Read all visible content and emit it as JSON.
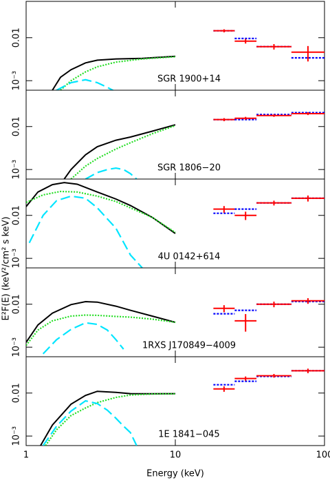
{
  "chart_data": [
    {
      "type": "spectrum",
      "annotation": "SGR 1900+14",
      "log_x": true,
      "log_y": true,
      "xlim": [
        1,
        100
      ],
      "ylim": [
        0.0006,
        0.07
      ],
      "xticks": [
        1,
        10,
        100
      ],
      "yticks": [
        {
          "value": 0.001,
          "label": "10⁻³"
        },
        0.01
      ],
      "lines": [
        {
          "color": "#000000",
          "style": "solid",
          "x": [
            1.5,
            1.7,
            2,
            2.5,
            3,
            4,
            6,
            10
          ],
          "values": [
            0.0006,
            0.0012,
            0.0018,
            0.0026,
            0.003,
            0.0032,
            0.0033,
            0.0037
          ]
        },
        {
          "color": "#22dd22",
          "style": "dotted",
          "x": [
            1.7,
            2,
            2.5,
            3,
            4,
            6,
            10
          ],
          "values": [
            0.0006,
            0.001,
            0.0016,
            0.0021,
            0.0027,
            0.0032,
            0.0036
          ]
        },
        {
          "color": "#00e5ff",
          "style": "dashed",
          "x": [
            1.6,
            2,
            2.5,
            3,
            3.5,
            4.2
          ],
          "values": [
            0.0006,
            0.0009,
            0.00105,
            0.0009,
            0.0007,
            0.0005
          ]
        }
      ],
      "bin_edges": [
        18,
        25,
        35,
        60,
        100
      ],
      "data_color": "#ff0000",
      "model_color": "#0000ff",
      "values": [
        0.0145,
        0.0083,
        0.0062,
        0.0046
      ],
      "errors": [
        0.0012,
        0.001,
        0.0009,
        0.0018
      ],
      "model": [
        0.0145,
        0.0096,
        0.0062,
        0.0034
      ]
    },
    {
      "type": "spectrum",
      "annotation": "SGR 1806−20",
      "log_x": true,
      "log_y": true,
      "xlim": [
        1,
        100
      ],
      "ylim": [
        0.0006,
        0.07
      ],
      "xticks": [
        1,
        10,
        100
      ],
      "yticks": [
        {
          "value": 0.001,
          "label": "10⁻³"
        },
        0.01
      ],
      "lines": [
        {
          "color": "#000000",
          "style": "solid",
          "x": [
            1.8,
            2,
            2.5,
            3,
            4,
            5,
            7,
            10
          ],
          "values": [
            0.0006,
            0.001,
            0.0022,
            0.0034,
            0.0048,
            0.0057,
            0.0078,
            0.011
          ]
        },
        {
          "color": "#22dd22",
          "style": "dotted",
          "x": [
            2,
            2.5,
            3,
            4,
            5,
            7,
            10
          ],
          "values": [
            0.0006,
            0.0012,
            0.0018,
            0.003,
            0.0042,
            0.0068,
            0.0105
          ]
        },
        {
          "color": "#00e5ff",
          "style": "dashed",
          "x": [
            2.5,
            3,
            3.5,
            4,
            4.5,
            5,
            5.5
          ],
          "values": [
            0.0006,
            0.00085,
            0.001,
            0.00108,
            0.001,
            0.0008,
            0.0006
          ]
        }
      ],
      "bin_edges": [
        18,
        25,
        35,
        60,
        100
      ],
      "data_color": "#ff0000",
      "model_color": "#0000ff",
      "values": [
        0.0145,
        0.0156,
        0.018,
        0.02
      ],
      "errors": [
        0.0012,
        0.0012,
        0.0012,
        0.0015
      ],
      "model": [
        0.0145,
        0.0145,
        0.019,
        0.021
      ]
    },
    {
      "type": "spectrum",
      "annotation": "4U 0142+614",
      "log_x": true,
      "log_y": true,
      "ylabel": "E²F(E) (keV²/cm² s keV)",
      "xlim": [
        1,
        100
      ],
      "ylim": [
        0.0006,
        0.07
      ],
      "xticks": [
        1,
        10,
        100
      ],
      "yticks": [
        {
          "value": 0.001,
          "label": "10⁻³"
        },
        0.01
      ],
      "lines": [
        {
          "color": "#000000",
          "style": "solid",
          "x": [
            1,
            1.2,
            1.5,
            1.8,
            2.2,
            3,
            4,
            5,
            7,
            10
          ],
          "values": [
            0.016,
            0.035,
            0.052,
            0.058,
            0.053,
            0.035,
            0.024,
            0.017,
            0.009,
            0.0038
          ]
        },
        {
          "color": "#22dd22",
          "style": "dotted",
          "x": [
            1,
            1.3,
            1.7,
            2.2,
            3,
            4,
            5,
            7,
            10
          ],
          "values": [
            0.02,
            0.03,
            0.036,
            0.035,
            0.028,
            0.021,
            0.015,
            0.009,
            0.004
          ]
        },
        {
          "color": "#00e5ff",
          "style": "dashed",
          "x": [
            1.05,
            1.3,
            1.6,
            2,
            2.5,
            3,
            4,
            5,
            6
          ],
          "values": [
            0.0023,
            0.01,
            0.022,
            0.028,
            0.025,
            0.015,
            0.005,
            0.0012,
            0.0006
          ]
        }
      ],
      "bin_edges": [
        18,
        25,
        35,
        60,
        100
      ],
      "data_color": "#ff0000",
      "model_color": "#0000ff",
      "values": [
        0.014,
        0.01,
        0.0195,
        0.025
      ],
      "errors": [
        0.0025,
        0.0022,
        0.0025,
        0.004
      ],
      "model": [
        0.0112,
        0.014,
        0.0195,
        0.025
      ]
    },
    {
      "type": "spectrum",
      "annotation": "1RXS J170849−4009",
      "log_x": true,
      "log_y": true,
      "xlim": [
        1,
        100
      ],
      "ylim": [
        0.0006,
        0.07
      ],
      "xticks": [
        1,
        10,
        100
      ],
      "yticks": [
        {
          "value": 0.001,
          "label": "10⁻³"
        },
        0.01
      ],
      "lines": [
        {
          "color": "#000000",
          "style": "solid",
          "x": [
            1,
            1.2,
            1.5,
            2,
            2.5,
            3,
            4,
            5,
            7,
            10
          ],
          "values": [
            0.0013,
            0.0033,
            0.0062,
            0.0098,
            0.0115,
            0.0112,
            0.009,
            0.0072,
            0.0053,
            0.0038
          ]
        },
        {
          "color": "#22dd22",
          "style": "dotted",
          "x": [
            1,
            1.2,
            1.5,
            2,
            2.5,
            3,
            4,
            5,
            7,
            10
          ],
          "values": [
            0.0011,
            0.0025,
            0.0041,
            0.0053,
            0.0056,
            0.0055,
            0.0052,
            0.005,
            0.0045,
            0.0038
          ]
        },
        {
          "color": "#00e5ff",
          "style": "dashed",
          "x": [
            1.3,
            1.6,
            2,
            2.5,
            3,
            3.5,
            4,
            4.5
          ],
          "values": [
            0.0007,
            0.0015,
            0.0026,
            0.0037,
            0.0034,
            0.0025,
            0.0015,
            0.0009
          ]
        }
      ],
      "bin_edges": [
        18,
        25,
        35,
        60,
        100
      ],
      "data_color": "#ff0000",
      "model_color": "#0000ff",
      "values": [
        0.008,
        0.0041,
        0.01,
        0.012
      ],
      "errors": [
        0.0015,
        0.0018,
        0.0015,
        0.0018
      ],
      "model": [
        0.006,
        0.0072,
        0.01,
        0.0116
      ]
    },
    {
      "type": "spectrum",
      "annotation": "1E 1841−045",
      "log_x": true,
      "log_y": true,
      "xlabel": "Energy (keV)",
      "xtick_labels": true,
      "xlim": [
        1,
        100
      ],
      "ylim": [
        0.0006,
        0.07
      ],
      "xticks": [
        1,
        10,
        100
      ],
      "yticks": [
        {
          "value": 0.001,
          "label": "10⁻³"
        },
        0.01
      ],
      "lines": [
        {
          "color": "#000000",
          "style": "solid",
          "x": [
            1.25,
            1.5,
            2,
            2.5,
            3,
            4,
            5,
            7,
            10
          ],
          "values": [
            0.0006,
            0.0018,
            0.0055,
            0.0088,
            0.011,
            0.0104,
            0.0097,
            0.0096,
            0.0097
          ]
        },
        {
          "color": "#22dd22",
          "style": "dotted",
          "x": [
            1.35,
            1.6,
            2,
            2.5,
            3,
            4,
            5,
            7,
            10
          ],
          "values": [
            0.0006,
            0.0014,
            0.003,
            0.0045,
            0.006,
            0.0079,
            0.009,
            0.0095,
            0.0096
          ]
        },
        {
          "color": "#00e5ff",
          "style": "dashed",
          "x": [
            1.3,
            1.6,
            2,
            2.5,
            3,
            3.5,
            4,
            4.5,
            5,
            5.5
          ],
          "values": [
            0.0006,
            0.0017,
            0.0038,
            0.0066,
            0.0057,
            0.004,
            0.0026,
            0.0017,
            0.0012,
            0.0006
          ]
        }
      ],
      "bin_edges": [
        18,
        25,
        35,
        60,
        100
      ],
      "data_color": "#ff0000",
      "model_color": "#0000ff",
      "values": [
        0.0125,
        0.0218,
        0.0253,
        0.033
      ],
      "errors": [
        0.0018,
        0.0025,
        0.0025,
        0.004
      ],
      "model": [
        0.0156,
        0.0188,
        0.0244,
        0.033
      ]
    }
  ]
}
